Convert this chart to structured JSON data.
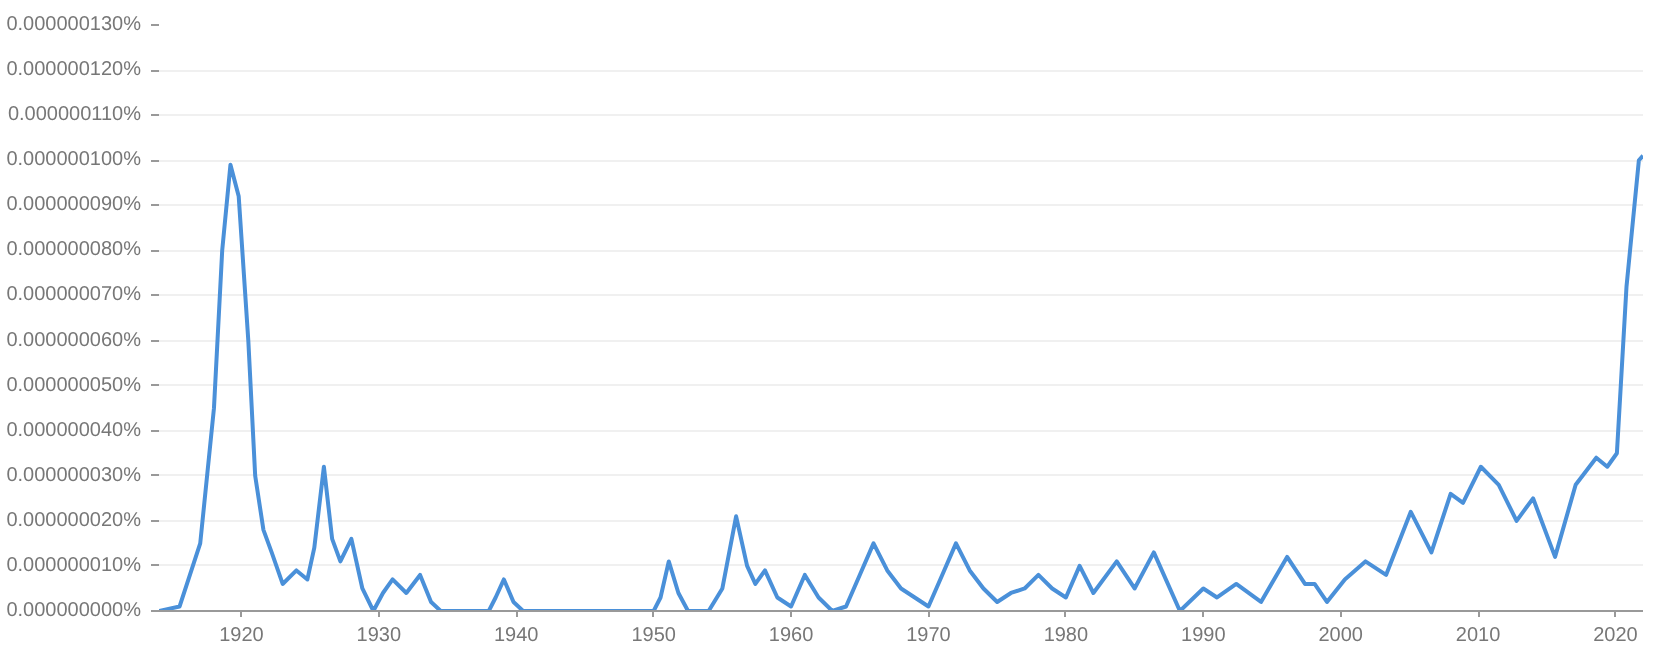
{
  "chart_data": {
    "type": "line",
    "x": [
      1914,
      1915.5,
      1917,
      1918,
      1918.6,
      1919.2,
      1919.8,
      1920.5,
      1921,
      1921.6,
      1922.2,
      1923,
      1924,
      1924.8,
      1925.3,
      1926,
      1926.6,
      1927.2,
      1928,
      1928.8,
      1929.6,
      1930.3,
      1931,
      1932,
      1933,
      1933.8,
      1934.5,
      1938,
      1938.5,
      1939.1,
      1939.8,
      1940.5,
      1950,
      1950.5,
      1951.1,
      1951.8,
      1952.5,
      1954,
      1955,
      1956,
      1956.8,
      1957.4,
      1958.1,
      1959,
      1960,
      1961,
      1962,
      1963,
      1964,
      1965,
      1966,
      1967,
      1968,
      1969,
      1970,
      1971,
      1972,
      1973,
      1974,
      1975,
      1976,
      1977,
      1978,
      1979,
      1980,
      1981,
      1982,
      1983.7,
      1985,
      1986.4,
      1988.3,
      1990,
      1991,
      1992.4,
      1994.2,
      1996.1,
      1997.4,
      1998.1,
      1999,
      2000.3,
      2001.8,
      2003.3,
      2005.1,
      2006.6,
      2008,
      2008.9,
      2010.2,
      2011.5,
      2012.8,
      2014,
      2015.6,
      2017.1,
      2018.6,
      2019.4,
      2020.1,
      2020.8,
      2021.7,
      2022
    ],
    "values": [
      0,
      1e-09,
      1.5e-08,
      4.5e-08,
      8e-08,
      9.9e-08,
      9.2e-08,
      6e-08,
      3e-08,
      1.8e-08,
      1.3e-08,
      6e-09,
      9e-09,
      7e-09,
      1.4e-08,
      3.2e-08,
      1.6e-08,
      1.1e-08,
      1.6e-08,
      5e-09,
      0,
      4e-09,
      7e-09,
      4e-09,
      8e-09,
      2e-09,
      0,
      0,
      3e-09,
      7e-09,
      2e-09,
      0,
      0,
      3e-09,
      1.1e-08,
      4e-09,
      0,
      0,
      5e-09,
      2.1e-08,
      1e-08,
      6e-09,
      9e-09,
      3e-09,
      1e-09,
      8e-09,
      3e-09,
      0,
      1e-09,
      8e-09,
      1.5e-08,
      9e-09,
      5e-09,
      3e-09,
      1e-09,
      8e-09,
      1.5e-08,
      9e-09,
      5e-09,
      2e-09,
      4e-09,
      5e-09,
      8e-09,
      5e-09,
      3e-09,
      1e-08,
      4e-09,
      1.1e-08,
      5e-09,
      1.3e-08,
      0,
      5e-09,
      3e-09,
      6e-09,
      2e-09,
      1.2e-08,
      6e-09,
      6e-09,
      2e-09,
      7e-09,
      1.1e-08,
      8e-09,
      2.2e-08,
      1.3e-08,
      2.6e-08,
      2.4e-08,
      3.2e-08,
      2.8e-08,
      2e-08,
      2.5e-08,
      1.2e-08,
      2.8e-08,
      3.4e-08,
      3.2e-08,
      3.5e-08,
      7.2e-08,
      1e-07,
      1.01e-07
    ],
    "color": "#4a90d9",
    "xlim": [
      1914,
      2022
    ],
    "xticks": [
      1920,
      1930,
      1940,
      1950,
      1960,
      1970,
      1980,
      1990,
      2000,
      2010,
      2020
    ],
    "ylim": [
      0,
      1.3e-07
    ],
    "yticks": [
      {
        "value": 0,
        "label": "0.000000000%"
      },
      {
        "value": 1e-08,
        "label": "0.000000010%"
      },
      {
        "value": 2e-08,
        "label": "0.000000020%"
      },
      {
        "value": 3e-08,
        "label": "0.000000030%"
      },
      {
        "value": 4e-08,
        "label": "0.000000040%"
      },
      {
        "value": 5e-08,
        "label": "0.000000050%"
      },
      {
        "value": 6e-08,
        "label": "0.000000060%"
      },
      {
        "value": 7e-08,
        "label": "0.000000070%"
      },
      {
        "value": 8e-08,
        "label": "0.000000080%"
      },
      {
        "value": 9e-08,
        "label": "0.000000090%"
      },
      {
        "value": 1e-07,
        "label": "0.000000100%"
      },
      {
        "value": 1.1e-07,
        "label": "0.000000110%"
      },
      {
        "value": 1.2e-07,
        "label": "0.000000120%"
      },
      {
        "value": 1.3e-07,
        "label": "0.000000130%"
      }
    ],
    "grid": "y",
    "line_style": "solid"
  }
}
